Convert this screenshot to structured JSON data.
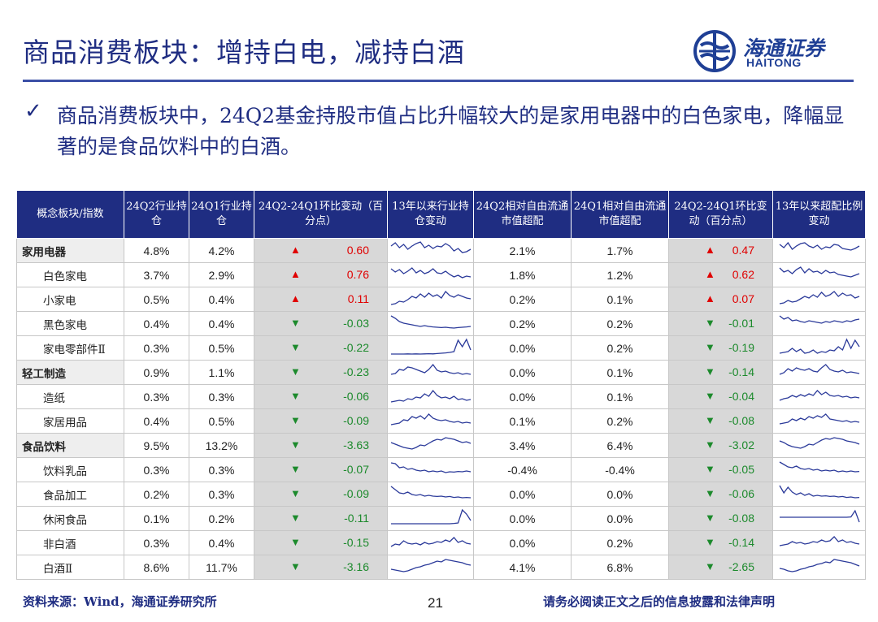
{
  "title": "商品消费板块：增持白电，减持白酒",
  "logo": {
    "cn": "海通证券",
    "en": "HAITONG"
  },
  "bullet": "商品消费板块中，24Q2基金持股市值占比升幅较大的是家用电器中的白色家电，降幅显著的是食品饮料中的白酒。",
  "table": {
    "headers": [
      "概念板块/指数",
      "24Q2行业持仓",
      "24Q1行业持仓",
      "24Q2-24Q1环比变动（百分点）",
      "13年以来行业持仓变动",
      "24Q2相对自由流通市值超配",
      "24Q1相对自由流通市值超配",
      "24Q2-24Q1环比变动（百分点）",
      "13年以来超配比例变动"
    ],
    "rows": [
      {
        "name": "家用电器",
        "cat": true,
        "q2": "4.8%",
        "q1": "4.2%",
        "chg": "0.60",
        "dir": "up",
        "oq2": "2.1%",
        "oq1": "1.7%",
        "ochg": "0.47",
        "odir": "up",
        "s1": [
          0.7,
          0.9,
          0.6,
          0.8,
          0.5,
          0.7,
          0.85,
          0.95,
          0.6,
          0.75,
          0.55,
          0.7,
          0.65,
          0.85,
          0.7,
          0.4,
          0.55,
          0.3,
          0.35,
          0.5
        ],
        "s2": [
          0.8,
          0.6,
          0.9,
          0.5,
          0.7,
          0.85,
          0.9,
          0.7,
          0.6,
          0.75,
          0.5,
          0.65,
          0.6,
          0.8,
          0.75,
          0.55,
          0.5,
          0.45,
          0.55,
          0.7
        ]
      },
      {
        "name": "白色家电",
        "cat": false,
        "q2": "3.7%",
        "q1": "2.9%",
        "chg": "0.76",
        "dir": "up",
        "oq2": "1.8%",
        "oq1": "1.2%",
        "ochg": "0.62",
        "odir": "up",
        "s1": [
          0.8,
          0.6,
          0.75,
          0.5,
          0.65,
          0.85,
          0.55,
          0.7,
          0.5,
          0.6,
          0.8,
          0.55,
          0.5,
          0.65,
          0.45,
          0.3,
          0.4,
          0.25,
          0.35,
          0.3
        ],
        "s2": [
          0.85,
          0.6,
          0.7,
          0.5,
          0.75,
          0.9,
          0.55,
          0.8,
          0.6,
          0.65,
          0.5,
          0.7,
          0.55,
          0.6,
          0.45,
          0.4,
          0.35,
          0.3,
          0.4,
          0.5
        ]
      },
      {
        "name": "小家电",
        "cat": false,
        "q2": "0.5%",
        "q1": "0.4%",
        "chg": "0.11",
        "dir": "up",
        "oq2": "0.2%",
        "oq1": "0.1%",
        "ochg": "0.07",
        "odir": "up",
        "s1": [
          0.1,
          0.15,
          0.3,
          0.25,
          0.4,
          0.6,
          0.5,
          0.75,
          0.55,
          0.8,
          0.6,
          0.7,
          0.5,
          0.9,
          0.65,
          0.55,
          0.7,
          0.6,
          0.5,
          0.45
        ],
        "s2": [
          0.15,
          0.2,
          0.35,
          0.25,
          0.3,
          0.45,
          0.6,
          0.5,
          0.7,
          0.55,
          0.85,
          0.6,
          0.7,
          0.9,
          0.6,
          0.8,
          0.65,
          0.7,
          0.5,
          0.6
        ]
      },
      {
        "name": "黑色家电",
        "cat": false,
        "q2": "0.4%",
        "q1": "0.4%",
        "chg": "-0.03",
        "dir": "down",
        "oq2": "0.2%",
        "oq1": "0.2%",
        "ochg": "-0.01",
        "odir": "down",
        "s1": [
          0.9,
          0.75,
          0.55,
          0.45,
          0.4,
          0.35,
          0.3,
          0.25,
          0.3,
          0.25,
          0.22,
          0.2,
          0.18,
          0.2,
          0.17,
          0.15,
          0.18,
          0.2,
          0.22,
          0.25
        ],
        "s2": [
          0.9,
          0.7,
          0.8,
          0.6,
          0.65,
          0.55,
          0.5,
          0.6,
          0.55,
          0.5,
          0.45,
          0.55,
          0.5,
          0.6,
          0.55,
          0.5,
          0.6,
          0.55,
          0.65,
          0.7
        ]
      },
      {
        "name": "家电零部件Ⅱ",
        "cat": false,
        "q2": "0.3%",
        "q1": "0.5%",
        "chg": "-0.22",
        "dir": "down",
        "oq2": "0.0%",
        "oq1": "0.2%",
        "ochg": "-0.19",
        "odir": "down",
        "s1": [
          0.05,
          0.05,
          0.05,
          0.05,
          0.06,
          0.05,
          0.06,
          0.05,
          0.06,
          0.07,
          0.06,
          0.08,
          0.1,
          0.12,
          0.15,
          0.2,
          0.9,
          0.5,
          0.95,
          0.3
        ],
        "s2": [
          0.1,
          0.15,
          0.2,
          0.4,
          0.2,
          0.35,
          0.1,
          0.15,
          0.3,
          0.1,
          0.2,
          0.15,
          0.3,
          0.25,
          0.5,
          0.3,
          0.95,
          0.4,
          0.9,
          0.5
        ]
      },
      {
        "name": "轻工制造",
        "cat": true,
        "q2": "0.9%",
        "q1": "1.1%",
        "chg": "-0.23",
        "dir": "down",
        "oq2": "0.0%",
        "oq1": "0.1%",
        "ochg": "-0.14",
        "odir": "down",
        "s1": [
          0.3,
          0.35,
          0.6,
          0.55,
          0.75,
          0.7,
          0.6,
          0.5,
          0.4,
          0.6,
          0.9,
          0.55,
          0.45,
          0.5,
          0.4,
          0.35,
          0.4,
          0.3,
          0.35,
          0.3
        ],
        "s2": [
          0.3,
          0.4,
          0.65,
          0.5,
          0.7,
          0.6,
          0.55,
          0.65,
          0.5,
          0.45,
          0.7,
          0.9,
          0.6,
          0.5,
          0.45,
          0.55,
          0.4,
          0.45,
          0.4,
          0.35
        ]
      },
      {
        "name": "造纸",
        "cat": false,
        "q2": "0.3%",
        "q1": "0.3%",
        "chg": "-0.06",
        "dir": "down",
        "oq2": "0.0%",
        "oq1": "0.1%",
        "ochg": "-0.04",
        "odir": "down",
        "s1": [
          0.1,
          0.15,
          0.2,
          0.15,
          0.3,
          0.25,
          0.4,
          0.35,
          0.6,
          0.45,
          0.8,
          0.5,
          0.35,
          0.4,
          0.3,
          0.45,
          0.25,
          0.3,
          0.2,
          0.25
        ],
        "s2": [
          0.2,
          0.3,
          0.35,
          0.5,
          0.4,
          0.55,
          0.45,
          0.6,
          0.5,
          0.8,
          0.55,
          0.7,
          0.5,
          0.45,
          0.5,
          0.4,
          0.45,
          0.35,
          0.4,
          0.35
        ]
      },
      {
        "name": "家居用品",
        "cat": false,
        "q2": "0.4%",
        "q1": "0.5%",
        "chg": "-0.09",
        "dir": "down",
        "oq2": "0.1%",
        "oq1": "0.2%",
        "ochg": "-0.08",
        "odir": "down",
        "s1": [
          0.2,
          0.25,
          0.3,
          0.5,
          0.45,
          0.7,
          0.6,
          0.75,
          0.55,
          0.85,
          0.6,
          0.5,
          0.45,
          0.5,
          0.4,
          0.35,
          0.4,
          0.3,
          0.35,
          0.3
        ],
        "s2": [
          0.25,
          0.3,
          0.35,
          0.55,
          0.45,
          0.6,
          0.5,
          0.7,
          0.6,
          0.75,
          0.65,
          0.85,
          0.55,
          0.5,
          0.45,
          0.4,
          0.45,
          0.35,
          0.4,
          0.35
        ]
      },
      {
        "name": "食品饮料",
        "cat": true,
        "q2": "9.5%",
        "q1": "13.2%",
        "chg": "-3.63",
        "dir": "down",
        "oq2": "3.4%",
        "oq1": "6.4%",
        "ochg": "-3.02",
        "odir": "down",
        "s1": [
          0.6,
          0.5,
          0.4,
          0.3,
          0.25,
          0.2,
          0.3,
          0.45,
          0.4,
          0.55,
          0.7,
          0.8,
          0.75,
          0.9,
          0.85,
          0.8,
          0.7,
          0.6,
          0.65,
          0.55
        ],
        "s2": [
          0.7,
          0.6,
          0.45,
          0.35,
          0.3,
          0.25,
          0.35,
          0.5,
          0.45,
          0.6,
          0.75,
          0.85,
          0.8,
          0.9,
          0.85,
          0.8,
          0.7,
          0.65,
          0.6,
          0.5
        ]
      },
      {
        "name": "饮料乳品",
        "cat": false,
        "q2": "0.3%",
        "q1": "0.3%",
        "chg": "-0.07",
        "dir": "down",
        "oq2": "-0.4%",
        "oq1": "-0.4%",
        "ochg": "-0.05",
        "odir": "down",
        "s1": [
          0.85,
          0.8,
          0.55,
          0.6,
          0.45,
          0.5,
          0.4,
          0.35,
          0.4,
          0.3,
          0.35,
          0.3,
          0.35,
          0.25,
          0.3,
          0.28,
          0.32,
          0.3,
          0.35,
          0.3
        ],
        "s2": [
          0.9,
          0.75,
          0.6,
          0.55,
          0.65,
          0.5,
          0.45,
          0.5,
          0.4,
          0.45,
          0.35,
          0.4,
          0.35,
          0.4,
          0.3,
          0.35,
          0.3,
          0.35,
          0.3,
          0.32
        ]
      },
      {
        "name": "食品加工",
        "cat": false,
        "q2": "0.2%",
        "q1": "0.3%",
        "chg": "-0.09",
        "dir": "down",
        "oq2": "0.0%",
        "oq1": "0.0%",
        "ochg": "-0.06",
        "odir": "down",
        "s1": [
          0.9,
          0.7,
          0.5,
          0.45,
          0.55,
          0.4,
          0.35,
          0.4,
          0.3,
          0.35,
          0.3,
          0.28,
          0.3,
          0.25,
          0.28,
          0.22,
          0.25,
          0.2,
          0.22,
          0.2
        ],
        "s2": [
          0.95,
          0.5,
          0.85,
          0.55,
          0.4,
          0.5,
          0.35,
          0.45,
          0.3,
          0.35,
          0.3,
          0.32,
          0.28,
          0.3,
          0.25,
          0.28,
          0.22,
          0.25,
          0.2,
          0.22
        ]
      },
      {
        "name": "休闲食品",
        "cat": false,
        "q2": "0.1%",
        "q1": "0.2%",
        "chg": "-0.11",
        "dir": "down",
        "oq2": "0.0%",
        "oq1": "0.0%",
        "ochg": "-0.08",
        "odir": "down",
        "s1": [
          0.1,
          0.1,
          0.1,
          0.1,
          0.1,
          0.1,
          0.1,
          0.1,
          0.1,
          0.1,
          0.1,
          0.1,
          0.1,
          0.1,
          0.1,
          0.12,
          0.15,
          0.95,
          0.7,
          0.3
        ],
        "s2": [
          0.5,
          0.5,
          0.5,
          0.5,
          0.5,
          0.5,
          0.5,
          0.5,
          0.5,
          0.5,
          0.5,
          0.5,
          0.5,
          0.5,
          0.5,
          0.5,
          0.5,
          0.52,
          0.9,
          0.2
        ]
      },
      {
        "name": "非白酒",
        "cat": false,
        "q2": "0.3%",
        "q1": "0.4%",
        "chg": "-0.15",
        "dir": "down",
        "oq2": "0.0%",
        "oq1": "0.2%",
        "ochg": "-0.14",
        "odir": "down",
        "s1": [
          0.2,
          0.35,
          0.3,
          0.55,
          0.4,
          0.35,
          0.4,
          0.3,
          0.45,
          0.35,
          0.4,
          0.5,
          0.45,
          0.6,
          0.5,
          0.75,
          0.45,
          0.55,
          0.4,
          0.35
        ],
        "s2": [
          0.25,
          0.3,
          0.35,
          0.5,
          0.4,
          0.45,
          0.35,
          0.4,
          0.5,
          0.45,
          0.6,
          0.5,
          0.55,
          0.8,
          0.5,
          0.6,
          0.45,
          0.5,
          0.4,
          0.35
        ]
      },
      {
        "name": "白酒Ⅱ",
        "cat": false,
        "q2": "8.6%",
        "q1": "11.7%",
        "chg": "-3.16",
        "dir": "down",
        "oq2": "4.1%",
        "oq1": "6.8%",
        "ochg": "-2.65",
        "odir": "down",
        "s1": [
          0.3,
          0.25,
          0.2,
          0.15,
          0.2,
          0.3,
          0.4,
          0.45,
          0.55,
          0.6,
          0.7,
          0.8,
          0.75,
          0.9,
          0.85,
          0.8,
          0.75,
          0.7,
          0.6,
          0.55
        ],
        "s2": [
          0.35,
          0.3,
          0.2,
          0.15,
          0.2,
          0.3,
          0.35,
          0.45,
          0.5,
          0.6,
          0.65,
          0.75,
          0.7,
          0.9,
          0.85,
          0.8,
          0.75,
          0.7,
          0.6,
          0.5
        ]
      }
    ]
  },
  "footer": {
    "source": "资料来源：Wind，海通证券研究所",
    "page": "21",
    "disclaimer": "请务必阅读正文之后的信息披露和法律声明"
  },
  "colors": {
    "brand": "#1f2d82",
    "up": "#e00000",
    "down": "#1c8a2c",
    "sparkline": "#2b3a9a"
  },
  "icons": {
    "check": "check-icon",
    "up": "up-triangle-icon",
    "down": "down-triangle-icon",
    "logo": "haitong-logo-icon"
  }
}
